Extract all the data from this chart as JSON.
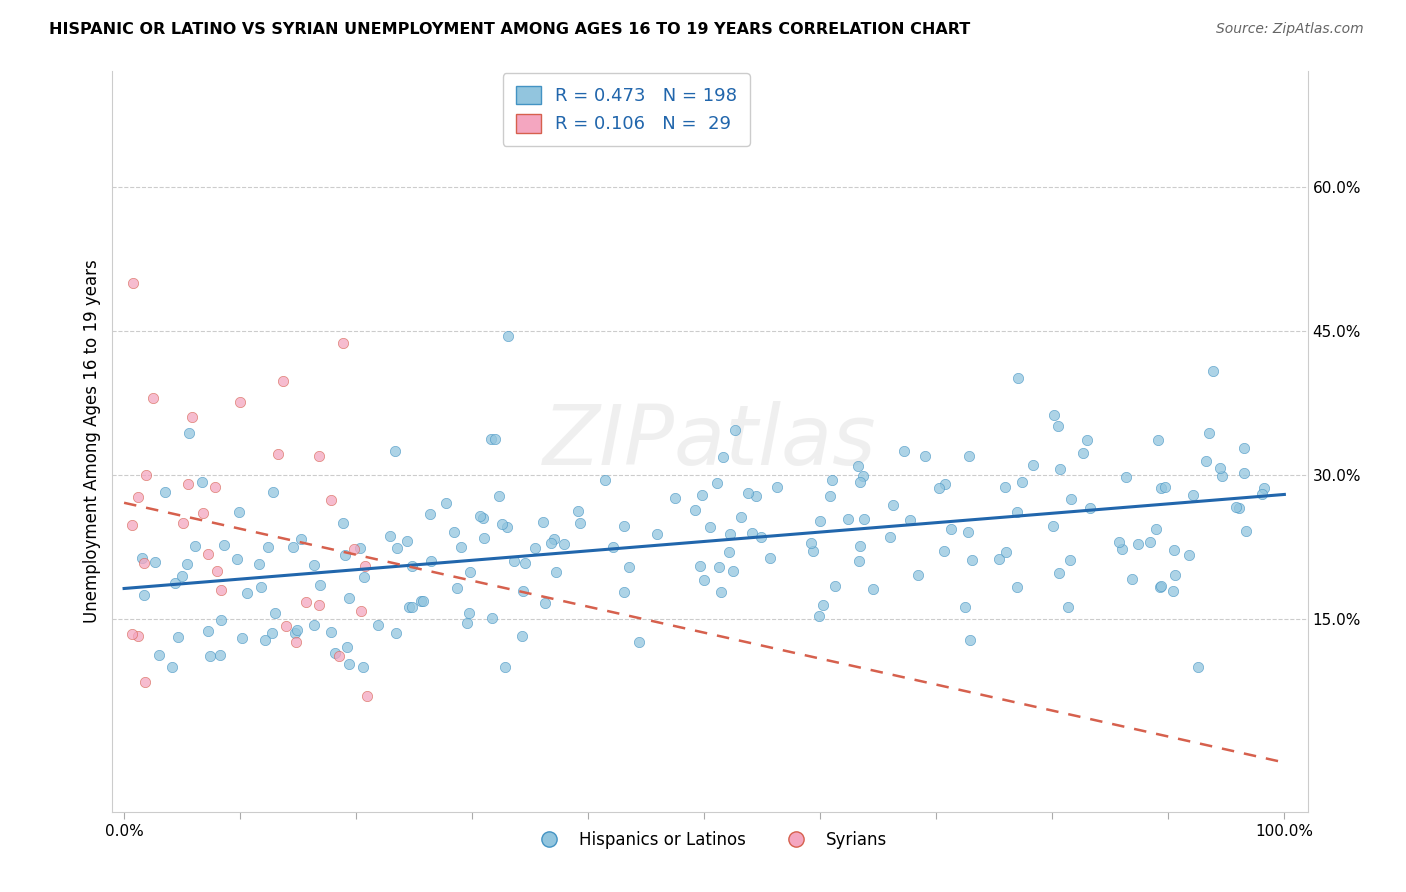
{
  "title": "HISPANIC OR LATINO VS SYRIAN UNEMPLOYMENT AMONG AGES 16 TO 19 YEARS CORRELATION CHART",
  "source": "Source: ZipAtlas.com",
  "ylabel": "Unemployment Among Ages 16 to 19 years",
  "watermark": "ZIPatlas",
  "blue_R": 0.473,
  "blue_N": 198,
  "pink_R": 0.106,
  "pink_N": 29,
  "blue_color": "#92c5de",
  "pink_color": "#f4a6c0",
  "blue_edge_color": "#4393c3",
  "pink_edge_color": "#d6604d",
  "blue_line_color": "#2166ac",
  "pink_line_color": "#d6604d",
  "blue_label": "Hispanics or Latinos",
  "pink_label": "Syrians",
  "xlim": [
    -0.01,
    1.02
  ],
  "ylim": [
    -0.05,
    0.72
  ],
  "ytick_vals": [
    0.15,
    0.3,
    0.45,
    0.6
  ],
  "ytick_labels": [
    "15.0%",
    "30.0%",
    "45.0%",
    "60.0%"
  ]
}
